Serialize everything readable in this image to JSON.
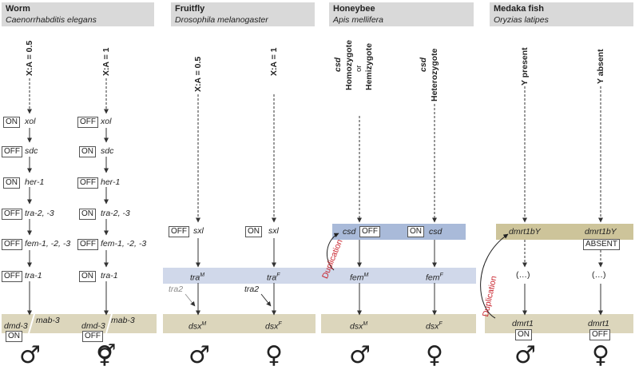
{
  "panels": {
    "worm": {
      "title": "Worm",
      "species": "Caenorrhabditis elegans"
    },
    "fly": {
      "title": "Fruitfly",
      "species": "Drosophila melanogaster"
    },
    "bee": {
      "title": "Honeybee",
      "species": "Apis mellifera"
    },
    "fish": {
      "title": "Medaka fish",
      "species": "Oryzias latipes"
    }
  },
  "conditions": {
    "xa05": "X:A = 0.5",
    "xa1": "X:A = 1",
    "csd": "csd",
    "homozygote": "Homozygote",
    "or": "or",
    "hemizygote": "Hemizygote",
    "heterozygote": "Heterozygote",
    "y_present": "Y present",
    "y_absent": "Y absent"
  },
  "states": {
    "on": "ON",
    "off": "OFF",
    "absent": "ABSENT"
  },
  "genes": {
    "xol": "xol",
    "sdc": "sdc",
    "her1": "her-1",
    "tra2_3": "tra-2, -3",
    "fem": "fem-1, -2, -3",
    "tra1": "tra-1",
    "dmd3": "dmd-3",
    "mab3": "mab-3",
    "sxl": "sxl",
    "tra": "tra",
    "tra2": "tra2",
    "dsx": "dsx",
    "csd": "csd",
    "fem_bee": "fem",
    "dmrt1bY": "dmrt1bY",
    "ellipsis": "(…)",
    "dmrt1": "dmrt1"
  },
  "superscripts": {
    "male": "M",
    "female": "F"
  },
  "annotations": {
    "duplication": "Duplication"
  },
  "symbols": {
    "male": "♂",
    "female": "♀"
  },
  "colors": {
    "tan": "#dcd6bc",
    "blue_light": "#d0d8ea",
    "blue": "#a9bad9",
    "olive": "#cdc49a",
    "duplication": "#c8202a"
  }
}
